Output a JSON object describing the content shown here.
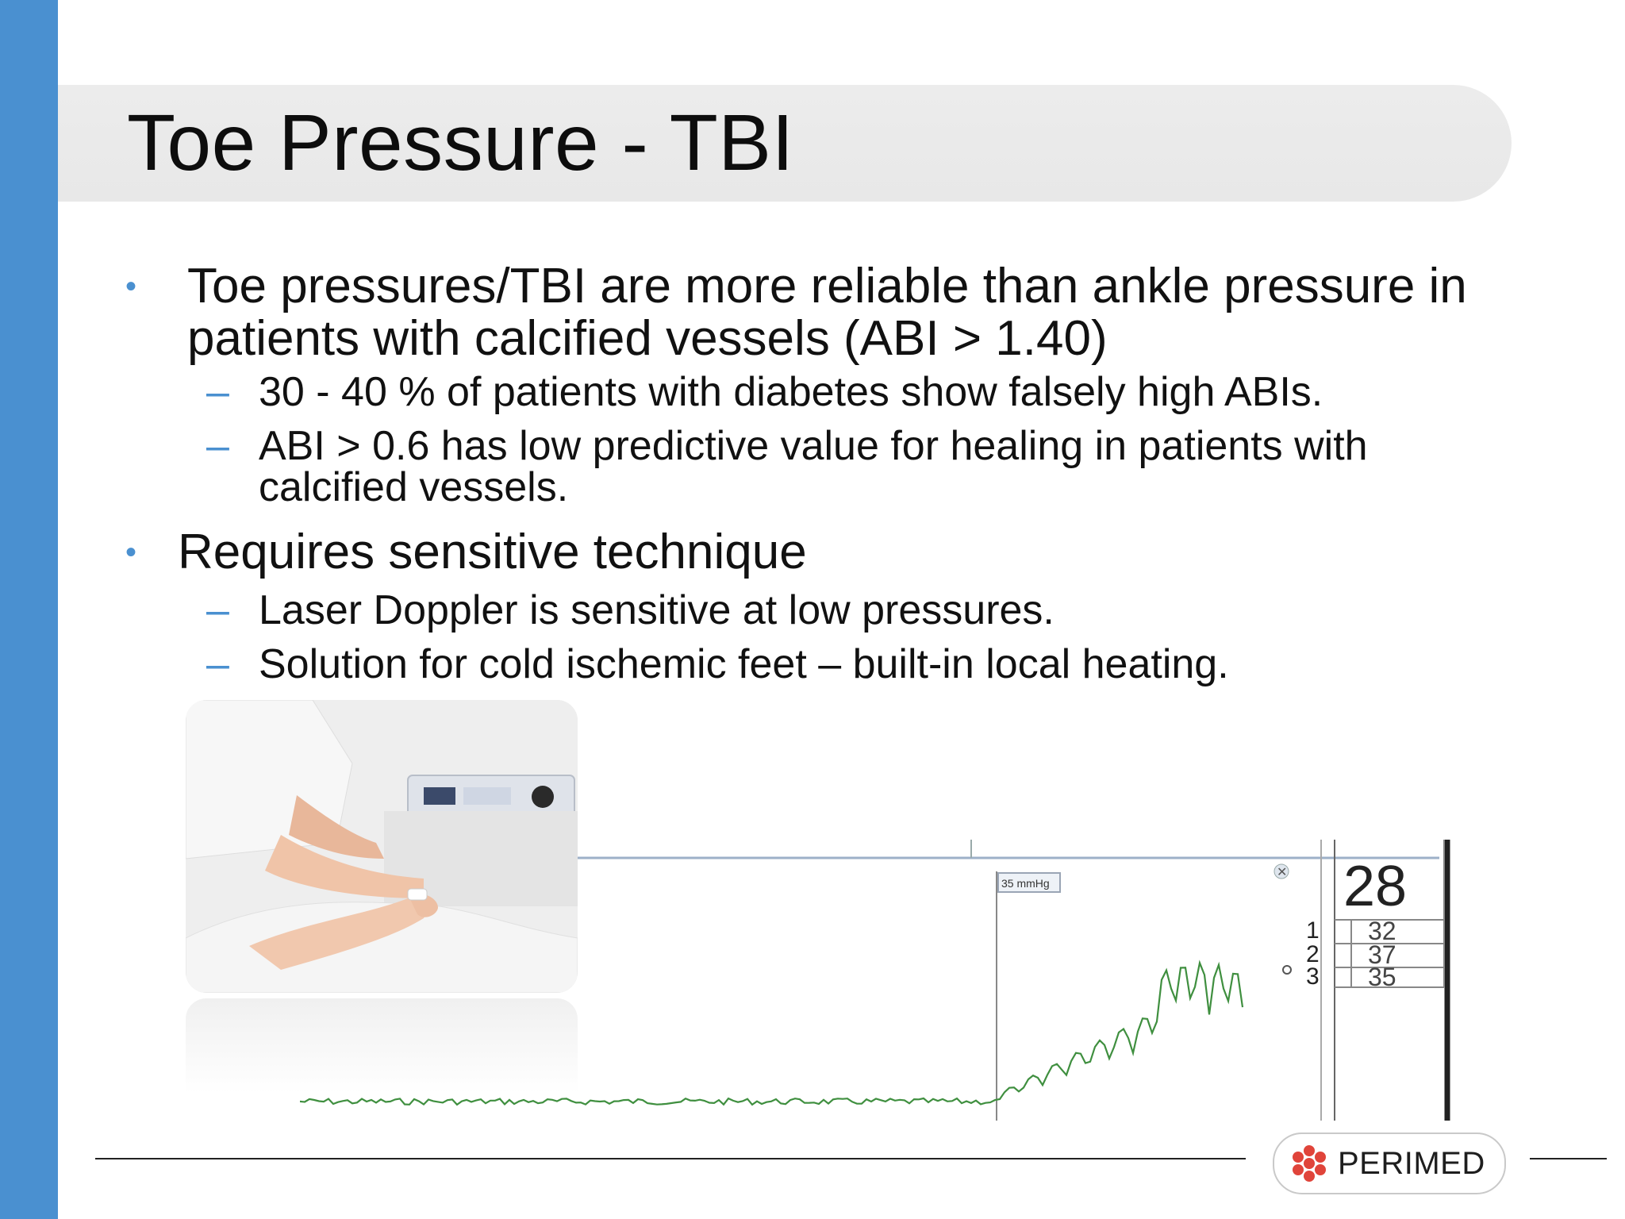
{
  "slide": {
    "title": "Toe Pressure - TBI",
    "bullet_symbol": "•",
    "sub_symbol": "–",
    "bullets": [
      {
        "text": "Toe pressures/TBI are more reliable than ankle pressure in patients with calcified vessels (ABI > 1.40)",
        "subs": [
          "30 - 40 % of patients with diabetes show falsely high ABIs.",
          "ABI > 0.6 has low predictive value for healing in patients with calcified vessels."
        ]
      },
      {
        "text": "Requires sensitive technique",
        "subs": [
          "Laser Doppler is sensitive at low pressures.",
          "Solution for cold ischemic feet – built-in local heating."
        ]
      }
    ]
  },
  "measurement": {
    "marker_label": "35 mmHg",
    "main_value": "28",
    "readings": [
      {
        "index": "1",
        "value": "32"
      },
      {
        "index": "2",
        "value": "37"
      },
      {
        "index": "3",
        "value": "35"
      }
    ]
  },
  "logo": {
    "text": "PERIMED"
  },
  "colors": {
    "accent": "#4a90d0",
    "trace": "#3f8f3f",
    "logo_mark": "#e0443a"
  },
  "icons": {
    "photo": "clinician-measuring-toe-pressure-photo",
    "logo": "perimed-flower-logo"
  }
}
